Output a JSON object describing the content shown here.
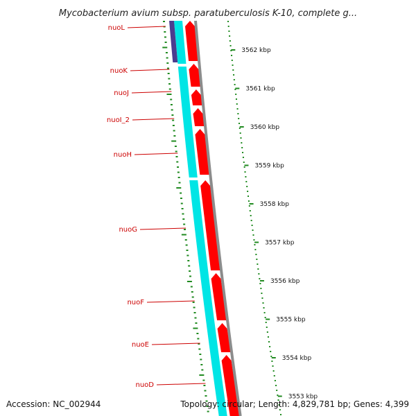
{
  "map": {
    "title": "Mycobacterium avium subsp. paratuberculosis K-10, complete g...",
    "accession": "Accession: NC_002944",
    "topology": "Topology: circular; Length: 4,829,781 bp; Genes: 4,399"
  },
  "genes": [
    {
      "name": "nuoL"
    },
    {
      "name": "nuoK"
    },
    {
      "name": "nuoJ"
    },
    {
      "name": "nuoI_2"
    },
    {
      "name": "nuoH"
    },
    {
      "name": "nuoG"
    },
    {
      "name": "nuoF"
    },
    {
      "name": "nuoE"
    },
    {
      "name": "nuoD"
    }
  ],
  "ticks": [
    {
      "label": "3562 kbp"
    },
    {
      "label": "3561 kbp"
    },
    {
      "label": "3560 kbp"
    },
    {
      "label": "3559 kbp"
    },
    {
      "label": "3558 kbp"
    },
    {
      "label": "3557 kbp"
    },
    {
      "label": "3556 kbp"
    },
    {
      "label": "3555 kbp"
    },
    {
      "label": "3554 kbp"
    },
    {
      "label": "3553 kbp"
    }
  ],
  "colors": {
    "cds_forward": "#ff0000",
    "cds_reverse": "#00e5e5",
    "other_feature": "#4b3d8f",
    "backbone": "#8c8c8c",
    "gc_dots": "#1f8a1f",
    "label": "#cc0000"
  }
}
